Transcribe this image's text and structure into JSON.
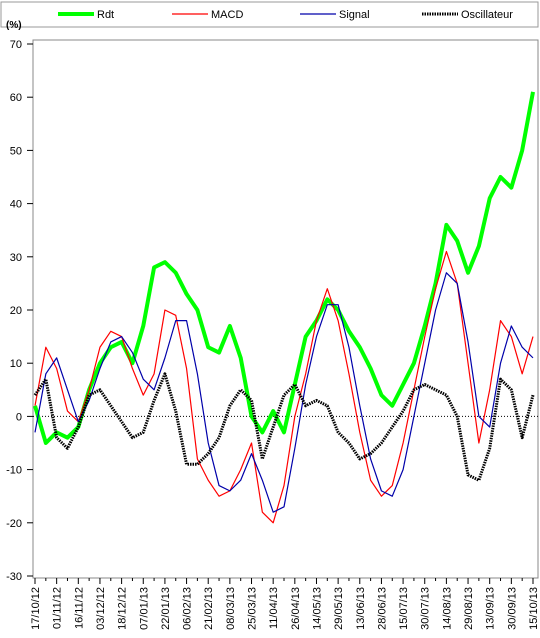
{
  "chart_data": {
    "type": "line",
    "y_label": "(%)",
    "categories": [
      "17/10/12",
      null,
      "01/11/12",
      null,
      "16/11/12",
      null,
      "03/12/12",
      null,
      "18/12/12",
      null,
      "07/01/13",
      null,
      "22/01/13",
      null,
      "06/02/13",
      null,
      "21/02/13",
      null,
      "08/03/13",
      null,
      "25/03/13",
      null,
      "11/04/13",
      null,
      "26/04/13",
      null,
      "14/05/13",
      null,
      "29/05/13",
      null,
      "13/06/13",
      null,
      "28/06/13",
      null,
      "15/07/13",
      null,
      "30/07/13",
      null,
      "14/08/13",
      null,
      "29/08/13",
      null,
      "13/09/13",
      null,
      "30/09/13",
      null,
      "15/10/13"
    ],
    "series": [
      {
        "name": "Rdt",
        "color": "#00ff00",
        "values": [
          2,
          -5,
          -3,
          -4,
          -2,
          5,
          10,
          13,
          14,
          10,
          17,
          28,
          29,
          27,
          23,
          20,
          13,
          12,
          17,
          11,
          0,
          -3,
          1,
          -3,
          6,
          15,
          18,
          22,
          20,
          16,
          13,
          9,
          4,
          2,
          6,
          10,
          17,
          25,
          36,
          33,
          27,
          32,
          41,
          45,
          43,
          50,
          61
        ]
      },
      {
        "name": "MACD",
        "color": "#ff0000",
        "values": [
          2,
          13,
          9,
          1,
          -1,
          5,
          13,
          16,
          15,
          9,
          4,
          8,
          20,
          19,
          9,
          -8,
          -12,
          -15,
          -14,
          -10,
          -5,
          -18,
          -20,
          -13,
          0,
          8,
          18,
          24,
          18,
          8,
          -3,
          -12,
          -15,
          -13,
          -5,
          5,
          15,
          24,
          31,
          25,
          10,
          -5,
          5,
          18,
          15,
          8,
          15
        ]
      },
      {
        "name": "Signal",
        "color": "#0000aa",
        "values": [
          -3,
          8,
          11,
          5,
          -1,
          3,
          9,
          14,
          15,
          12,
          7,
          5,
          11,
          18,
          18,
          8,
          -5,
          -13,
          -14,
          -12,
          -7,
          -12,
          -18,
          -17,
          -6,
          6,
          15,
          21,
          21,
          13,
          2,
          -8,
          -14,
          -15,
          -10,
          0,
          10,
          20,
          27,
          25,
          14,
          0,
          -2,
          10,
          17,
          13,
          11
        ]
      },
      {
        "name": "Oscillateur",
        "color": "#000000",
        "values": [
          4,
          7,
          -4,
          -6,
          -2,
          4,
          5,
          2,
          -1,
          -4,
          -3,
          3,
          8,
          1,
          -9,
          -9,
          -7,
          -4,
          2,
          5,
          3,
          -8,
          -2,
          4,
          6,
          2,
          3,
          2,
          -3,
          -5,
          -8,
          -7,
          -5,
          -2,
          1,
          5,
          6,
          5,
          4,
          0,
          -11,
          -12,
          -6,
          7,
          5,
          -4,
          4
        ]
      }
    ],
    "ylim": [
      -30,
      70
    ],
    "yticks": [
      -30,
      -20,
      -10,
      0,
      10,
      20,
      30,
      40,
      50,
      60,
      70
    ],
    "grid": false
  }
}
